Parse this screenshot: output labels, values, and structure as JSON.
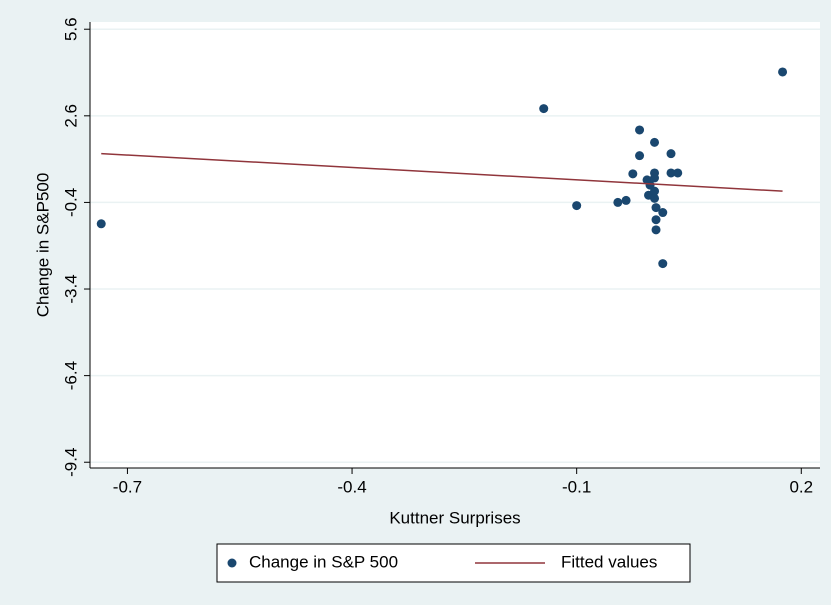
{
  "chart_data": {
    "type": "scatter",
    "x_label": "Kuttner Surprises",
    "y_label": "Change in S&P500",
    "xlim": [
      -0.75,
      0.225
    ],
    "xticks": [
      -0.7,
      -0.4,
      -0.1,
      0.2
    ],
    "ylim": [
      -9.6,
      5.85
    ],
    "yticks": [
      5.6,
      2.6,
      -0.4,
      -3.4,
      -6.4,
      -9.4
    ],
    "grid": true,
    "legend": "bottom",
    "series": [
      {
        "name": "Change in S&P 500",
        "mode": "markers",
        "color": "#1a476f",
        "x": [
          -0.735,
          -0.144,
          -0.1,
          -0.045,
          -0.034,
          -0.025,
          -0.016,
          -0.016,
          -0.006,
          -0.004,
          -0.002,
          0.004,
          0.004,
          0.004,
          0.004,
          0.004,
          0.006,
          0.006,
          0.006,
          0.015,
          0.015,
          0.026,
          0.026,
          0.035,
          0.175
        ],
        "values": [
          -1.14,
          2.85,
          -0.51,
          -0.4,
          -0.33,
          0.59,
          2.11,
          1.22,
          0.38,
          -0.15,
          0.2,
          1.68,
          0.62,
          0.45,
          -0.01,
          -0.26,
          -0.58,
          -1.0,
          -1.35,
          -0.75,
          -2.52,
          1.29,
          0.62,
          0.62,
          4.12
        ]
      },
      {
        "name": "Fitted values",
        "mode": "line",
        "color": "#90353b",
        "x": [
          -0.735,
          0.175
        ],
        "values": [
          1.29,
          -0.01
        ]
      }
    ]
  }
}
